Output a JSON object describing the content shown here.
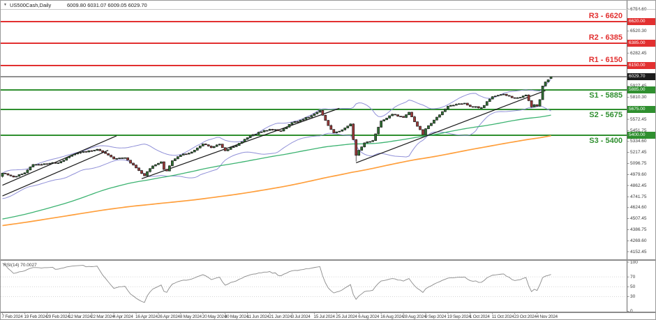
{
  "window": {
    "symbol": "US500Cash,Daily",
    "ohlc": "6009.80 6031.07 6009.05 6029.70",
    "dropdown_icon": "▼"
  },
  "colors": {
    "resistance": "#e23030",
    "support": "#2f8f2f",
    "bull_candle": "#2f7032",
    "bear_candle": "#9e3939",
    "candle_outline": "#1b1b1b",
    "bollinger": "#9090d8",
    "sma100": "#3cb371",
    "sma200": "#ff9f3c",
    "trendline": "#1a1a1a",
    "current_price_line": "#222222",
    "current_price_tag_bg": "#1c1c1c",
    "rsi_line": "#8a8a8a",
    "rsi_grid": "#c8c8c8",
    "axis_text": "#3a3a3a"
  },
  "chart_data": {
    "type": "candlestick",
    "symbol": "US500Cash",
    "timeframe": "Daily",
    "candle_count": 198,
    "last_candle": {
      "open": 6009.8,
      "high": 6031.07,
      "low": 6009.05,
      "close": 6029.7
    },
    "price_axis": {
      "top_value": 6754.6,
      "bottom_value": 4152.45,
      "tick_labels": [
        "6754.60",
        "6520.30",
        "6282.45",
        "5927.45",
        "5810.30",
        "5572.45",
        "5451.75",
        "5334.60",
        "5217.45",
        "5096.75",
        "4979.60",
        "4862.45",
        "4741.75",
        "4624.60",
        "4507.45",
        "4386.75",
        "4269.60",
        "4152.45"
      ]
    },
    "time_axis": {
      "candles_per_tick": 8,
      "tick_labels": [
        "7 Feb 2024",
        "19 Feb 2024",
        "29 Feb 2024",
        "12 Mar 2024",
        "22 Mar 2024",
        "4 Apr 2024",
        "16 Apr 2024",
        "26 Apr 2024",
        "8 May 2024",
        "20 May 2024",
        "30 May 2024",
        "11 Jun 2024",
        "21 Jun 2024",
        "3 Jul 2024",
        "15 Jul 2024",
        "25 Jul 2024",
        "6 Aug 2024",
        "16 Aug 2024",
        "28 Aug 2024",
        "9 Sep 2024",
        "19 Sep 2024",
        "1 Oct 2024",
        "11 Oct 2024",
        "23 Oct 2024",
        "4 Nov 2024"
      ]
    },
    "levels": {
      "resistance": [
        {
          "name": "R3",
          "label": "R3 - 6620",
          "price": 6620,
          "tag": "6620.00"
        },
        {
          "name": "R2",
          "label": "R2 - 6385",
          "price": 6385,
          "tag": "6385.00"
        },
        {
          "name": "R1",
          "label": "R1 - 6150",
          "price": 6150,
          "tag": "6150.00"
        }
      ],
      "support": [
        {
          "name": "S1",
          "label": "S1 - 5885",
          "price": 5885,
          "tag": "5885.00"
        },
        {
          "name": "S2",
          "label": "S2 - 5675",
          "price": 5675,
          "tag": "5675.00"
        },
        {
          "name": "S3",
          "label": "S3 - 5400",
          "price": 5400,
          "tag": "5400.00"
        }
      ],
      "current_price": {
        "price": 6029.7,
        "tag": "6029.70"
      }
    },
    "trendlines": [
      {
        "name": "channel-upper",
        "from": [
          0,
          4865
        ],
        "to": [
          41,
          5395
        ]
      },
      {
        "name": "channel-lower",
        "from": [
          0,
          4750
        ],
        "to": [
          38,
          5240
        ]
      },
      {
        "name": "uptrend-line-spring",
        "from": [
          50,
          4935
        ],
        "to": [
          121,
          5690
        ]
      },
      {
        "name": "uptrend-line-autumn",
        "from": [
          127,
          5105
        ],
        "to": [
          195,
          5880
        ]
      }
    ],
    "overlays": [
      {
        "name": "bollinger-bands",
        "period": 20,
        "deviation": 2
      },
      {
        "name": "sma-100",
        "period": 100
      },
      {
        "name": "sma-200",
        "period": 200
      }
    ],
    "close_anchors": [
      [
        0,
        4995
      ],
      [
        4,
        4953
      ],
      [
        8,
        4998
      ],
      [
        11,
        5087
      ],
      [
        16,
        5096
      ],
      [
        20,
        5105
      ],
      [
        24,
        5175
      ],
      [
        28,
        5218
      ],
      [
        32,
        5234
      ],
      [
        34,
        5250
      ],
      [
        37,
        5205
      ],
      [
        40,
        5147
      ],
      [
        44,
        5160
      ],
      [
        48,
        5051
      ],
      [
        51,
        4967
      ],
      [
        52,
        5011
      ],
      [
        54,
        5072
      ],
      [
        56,
        5100
      ],
      [
        57,
        5116
      ],
      [
        58,
        5035
      ],
      [
        59,
        5018
      ],
      [
        61,
        5128
      ],
      [
        64,
        5188
      ],
      [
        68,
        5222
      ],
      [
        72,
        5308
      ],
      [
        75,
        5268
      ],
      [
        78,
        5306
      ],
      [
        80,
        5235
      ],
      [
        84,
        5291
      ],
      [
        88,
        5375
      ],
      [
        92,
        5433
      ],
      [
        96,
        5465
      ],
      [
        100,
        5447
      ],
      [
        104,
        5537
      ],
      [
        108,
        5572
      ],
      [
        112,
        5631
      ],
      [
        114,
        5667
      ],
      [
        117,
        5505
      ],
      [
        119,
        5427
      ],
      [
        122,
        5459
      ],
      [
        125,
        5522
      ],
      [
        127,
        5186
      ],
      [
        128,
        5240
      ],
      [
        130,
        5319
      ],
      [
        133,
        5344
      ],
      [
        136,
        5554
      ],
      [
        140,
        5626
      ],
      [
        144,
        5592
      ],
      [
        146,
        5648
      ],
      [
        151,
        5408
      ],
      [
        152,
        5471
      ],
      [
        156,
        5595
      ],
      [
        160,
        5713
      ],
      [
        163,
        5733
      ],
      [
        166,
        5745
      ],
      [
        168,
        5709
      ],
      [
        172,
        5696
      ],
      [
        176,
        5815
      ],
      [
        180,
        5842
      ],
      [
        184,
        5797
      ],
      [
        186,
        5808
      ],
      [
        188,
        5833
      ],
      [
        190,
        5705
      ],
      [
        191,
        5729
      ],
      [
        192,
        5713
      ],
      [
        193,
        5783
      ],
      [
        194,
        5929
      ],
      [
        195,
        5973
      ],
      [
        196,
        5996
      ],
      [
        197,
        6029.7
      ]
    ],
    "pre_close_anchors": [
      [
        -210,
        4105
      ],
      [
        -195,
        4133
      ],
      [
        -180,
        4165
      ],
      [
        -170,
        4282
      ],
      [
        -160,
        4360
      ],
      [
        -150,
        4410
      ],
      [
        -140,
        4478
      ],
      [
        -135,
        4588
      ],
      [
        -125,
        4500
      ],
      [
        -115,
        4437
      ],
      [
        -105,
        4460
      ],
      [
        -95,
        4330
      ],
      [
        -85,
        4288
      ],
      [
        -75,
        4230
      ],
      [
        -68,
        4117
      ],
      [
        -60,
        4358
      ],
      [
        -50,
        4508
      ],
      [
        -40,
        4550
      ],
      [
        -30,
        4594
      ],
      [
        -22,
        4754
      ],
      [
        -15,
        4783
      ],
      [
        -10,
        4845
      ],
      [
        -5,
        4906
      ],
      [
        -1,
        4960
      ]
    ],
    "rsi": {
      "label": "RSI(14) 70.0027",
      "period": 14,
      "last_value": "70.0027",
      "range": [
        0,
        100
      ],
      "grid_levels": [
        70,
        50,
        30
      ],
      "scale_labels": [
        "100",
        "70",
        "50",
        "30",
        "0"
      ],
      "scale_values": [
        100,
        70,
        50,
        30,
        0
      ]
    }
  }
}
